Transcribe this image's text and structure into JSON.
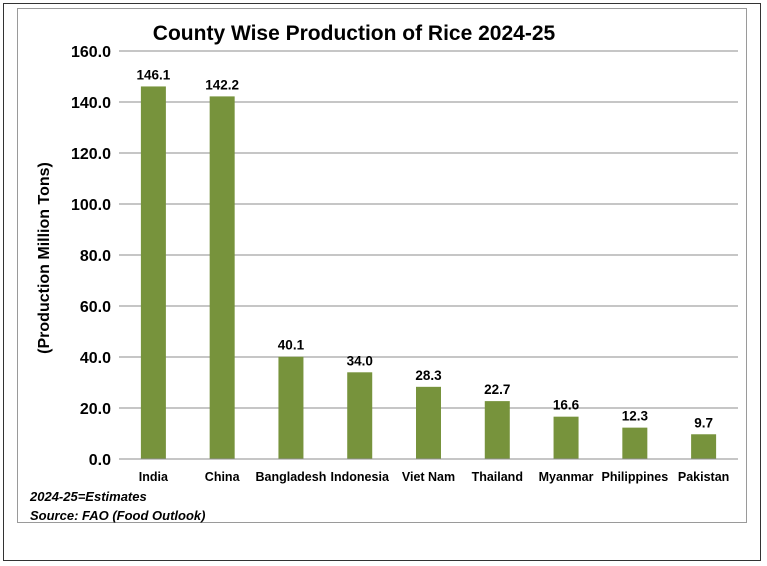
{
  "chart_data": {
    "type": "bar",
    "title": "County Wise Production of Rice 2024-25",
    "ylabel": "(Production Million Tons)",
    "xlabel": "",
    "ylim": [
      0,
      160
    ],
    "yticks": [
      "0.0",
      "20.0",
      "40.0",
      "60.0",
      "80.0",
      "100.0",
      "120.0",
      "140.0",
      "160.0"
    ],
    "categories": [
      "India",
      "China",
      "Bangladesh",
      "Indonesia",
      "Viet Nam",
      "Thailand",
      "Myanmar",
      "Philippines",
      "Pakistan"
    ],
    "values": [
      146.1,
      142.2,
      40.1,
      34.0,
      28.3,
      22.7,
      16.6,
      12.3,
      9.7
    ],
    "data_labels": [
      "146.1",
      "142.2",
      "40.1",
      "34.0",
      "28.3",
      "22.7",
      "16.6",
      "12.3",
      "9.7"
    ],
    "grid": true,
    "bar_color": "#77933c",
    "grid_color": "#8c8c8c"
  },
  "notes": {
    "estimates": "2024-25=Estimates",
    "source": "Source: FAO (Food Outlook)"
  }
}
